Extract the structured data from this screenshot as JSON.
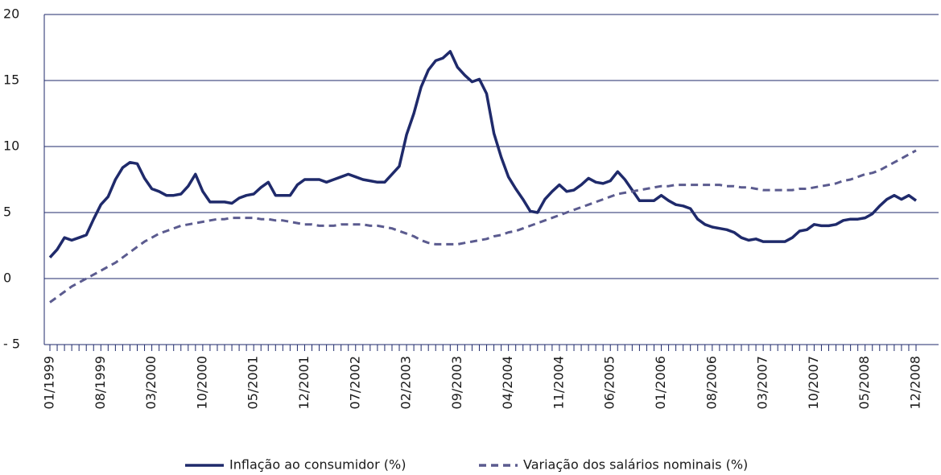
{
  "chart_data": {
    "type": "line",
    "categories": [
      "01/1999",
      null,
      null,
      null,
      null,
      null,
      null,
      "08/1999",
      null,
      null,
      null,
      null,
      null,
      null,
      "03/2000",
      null,
      null,
      null,
      null,
      null,
      null,
      "10/2000",
      null,
      null,
      null,
      null,
      null,
      null,
      "05/2001",
      null,
      null,
      null,
      null,
      null,
      null,
      "12/2001",
      null,
      null,
      null,
      null,
      null,
      null,
      "07/2002",
      null,
      null,
      null,
      null,
      null,
      null,
      "02/2003",
      null,
      null,
      null,
      null,
      null,
      null,
      "09/2003",
      null,
      null,
      null,
      null,
      null,
      null,
      "04/2004",
      null,
      null,
      null,
      null,
      null,
      null,
      "11/2004",
      null,
      null,
      null,
      null,
      null,
      null,
      "06/2005",
      null,
      null,
      null,
      null,
      null,
      null,
      "01/2006",
      null,
      null,
      null,
      null,
      null,
      null,
      "08/2006",
      null,
      null,
      null,
      null,
      null,
      null,
      "03/2007",
      null,
      null,
      null,
      null,
      null,
      null,
      "10/2007",
      null,
      null,
      null,
      null,
      null,
      null,
      "05/2008",
      null,
      null,
      null,
      null,
      null,
      null,
      "12/2008"
    ],
    "series": [
      {
        "name": "Inflação ao consumidor (%)",
        "color": "#1f2a6b",
        "dash": false,
        "values": [
          1.6,
          2.2,
          3.1,
          2.9,
          3.1,
          3.3,
          4.5,
          5.6,
          6.2,
          7.5,
          8.4,
          8.8,
          8.7,
          7.6,
          6.8,
          6.6,
          6.3,
          6.3,
          6.4,
          7.0,
          7.9,
          6.6,
          5.8,
          5.8,
          5.8,
          5.7,
          6.1,
          6.3,
          6.4,
          6.9,
          7.3,
          6.3,
          6.3,
          6.3,
          7.1,
          7.5,
          7.5,
          7.5,
          7.3,
          7.5,
          7.7,
          7.9,
          7.7,
          7.5,
          7.4,
          7.3,
          7.3,
          7.9,
          8.5,
          10.9,
          12.5,
          14.5,
          15.8,
          16.5,
          16.7,
          17.2,
          16.0,
          15.4,
          14.9,
          15.1,
          14.0,
          11.0,
          9.2,
          7.7,
          6.8,
          6.0,
          5.1,
          5.0,
          6.0,
          6.6,
          7.1,
          6.6,
          6.7,
          7.1,
          7.6,
          7.3,
          7.2,
          7.4,
          8.1,
          7.5,
          6.7,
          5.9,
          5.9,
          5.9,
          6.3,
          5.9,
          5.6,
          5.5,
          5.3,
          4.5,
          4.1,
          3.9,
          3.8,
          3.7,
          3.5,
          3.1,
          2.9,
          3.0,
          2.8,
          2.8,
          2.8,
          2.8,
          3.1,
          3.6,
          3.7,
          4.1,
          4.0,
          4.0,
          4.1,
          4.4,
          4.5,
          4.5,
          4.6,
          4.9,
          5.5,
          6.0,
          6.3,
          6.0,
          6.3,
          5.9
        ]
      },
      {
        "name": "Variação dos salários nominais (%)",
        "color": "#5b5b8f",
        "dash": true,
        "values": [
          -1.8,
          -1.4,
          -1.0,
          -0.6,
          -0.3,
          0.0,
          0.3,
          0.6,
          0.9,
          1.2,
          1.6,
          2.0,
          2.4,
          2.8,
          3.1,
          3.4,
          3.6,
          3.8,
          4.0,
          4.1,
          4.2,
          4.3,
          4.4,
          4.5,
          4.5,
          4.6,
          4.6,
          4.6,
          4.6,
          4.5,
          4.5,
          4.4,
          4.4,
          4.3,
          4.2,
          4.1,
          4.1,
          4.0,
          4.0,
          4.0,
          4.1,
          4.1,
          4.1,
          4.1,
          4.0,
          4.0,
          3.9,
          3.8,
          3.6,
          3.4,
          3.2,
          2.9,
          2.7,
          2.6,
          2.6,
          2.6,
          2.6,
          2.7,
          2.8,
          2.9,
          3.0,
          3.2,
          3.3,
          3.5,
          3.6,
          3.8,
          4.0,
          4.2,
          4.4,
          4.6,
          4.8,
          5.0,
          5.2,
          5.4,
          5.6,
          5.8,
          6.0,
          6.2,
          6.4,
          6.5,
          6.6,
          6.7,
          6.8,
          6.9,
          7.0,
          7.0,
          7.1,
          7.1,
          7.1,
          7.1,
          7.1,
          7.1,
          7.1,
          7.0,
          7.0,
          6.9,
          6.9,
          6.8,
          6.7,
          6.7,
          6.7,
          6.7,
          6.7,
          6.8,
          6.8,
          6.9,
          7.0,
          7.1,
          7.2,
          7.4,
          7.5,
          7.7,
          7.9,
          8.0,
          8.2,
          8.5,
          8.8,
          9.1,
          9.4,
          9.7
        ]
      }
    ],
    "ylim": [
      -5,
      20
    ],
    "yticks": [
      {
        "value": -5,
        "label": "- 5"
      },
      0,
      5,
      10,
      15,
      20
    ],
    "grid": true
  }
}
